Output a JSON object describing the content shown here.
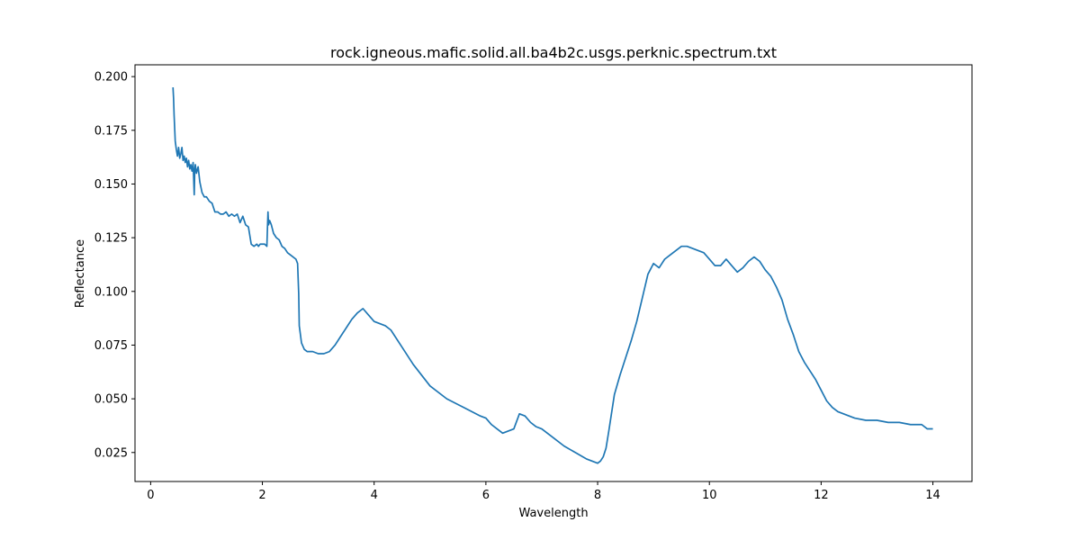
{
  "chart_data": {
    "type": "line",
    "title": "rock.igneous.mafic.solid.all.ba4b2c.usgs.perknic.spectrum.txt",
    "xlabel": "Wavelength",
    "ylabel": "Reflectance",
    "xlim": [
      -0.28,
      14.7
    ],
    "ylim": [
      0.0115,
      0.2055
    ],
    "xticks": [
      0,
      2,
      4,
      6,
      8,
      10,
      12,
      14
    ],
    "xtick_labels": [
      "0",
      "2",
      "4",
      "6",
      "8",
      "10",
      "12",
      "14"
    ],
    "yticks": [
      0.025,
      0.05,
      0.075,
      0.1,
      0.125,
      0.15,
      0.175,
      0.2
    ],
    "ytick_labels": [
      "0.025",
      "0.050",
      "0.075",
      "0.100",
      "0.125",
      "0.150",
      "0.175",
      "0.200"
    ],
    "grid": false,
    "series": [
      {
        "color": "#1f77b4",
        "x": [
          0.4,
          0.41,
          0.42,
          0.44,
          0.46,
          0.48,
          0.5,
          0.52,
          0.54,
          0.56,
          0.58,
          0.6,
          0.62,
          0.64,
          0.66,
          0.68,
          0.7,
          0.72,
          0.74,
          0.76,
          0.78,
          0.79,
          0.8,
          0.82,
          0.85,
          0.88,
          0.92,
          0.96,
          1.0,
          1.05,
          1.1,
          1.15,
          1.2,
          1.25,
          1.3,
          1.35,
          1.4,
          1.45,
          1.5,
          1.55,
          1.6,
          1.65,
          1.7,
          1.75,
          1.8,
          1.85,
          1.9,
          1.93,
          1.96,
          2.0,
          2.04,
          2.08,
          2.1,
          2.11,
          2.13,
          2.16,
          2.2,
          2.25,
          2.3,
          2.35,
          2.4,
          2.45,
          2.5,
          2.55,
          2.6,
          2.63,
          2.65,
          2.66,
          2.68,
          2.7,
          2.75,
          2.8,
          2.9,
          3.0,
          3.1,
          3.2,
          3.3,
          3.4,
          3.5,
          3.6,
          3.7,
          3.8,
          3.9,
          4.0,
          4.1,
          4.2,
          4.3,
          4.5,
          4.7,
          5.0,
          5.3,
          5.6,
          5.9,
          6.0,
          6.1,
          6.2,
          6.3,
          6.4,
          6.5,
          6.6,
          6.7,
          6.8,
          6.9,
          7.0,
          7.1,
          7.2,
          7.4,
          7.6,
          7.8,
          7.9,
          8.0,
          8.05,
          8.1,
          8.15,
          8.2,
          8.3,
          8.4,
          8.5,
          8.6,
          8.7,
          8.8,
          8.9,
          9.0,
          9.1,
          9.2,
          9.3,
          9.4,
          9.5,
          9.6,
          9.7,
          9.8,
          9.9,
          10.0,
          10.1,
          10.2,
          10.3,
          10.4,
          10.5,
          10.6,
          10.7,
          10.8,
          10.9,
          11.0,
          11.1,
          11.2,
          11.3,
          11.4,
          11.5,
          11.6,
          11.7,
          11.8,
          11.9,
          12.0,
          12.1,
          12.2,
          12.3,
          12.4,
          12.5,
          12.6,
          12.8,
          13.0,
          13.2,
          13.4,
          13.6,
          13.8,
          13.9,
          14.0
        ],
        "y": [
          0.195,
          0.19,
          0.182,
          0.17,
          0.166,
          0.163,
          0.167,
          0.162,
          0.164,
          0.167,
          0.161,
          0.163,
          0.16,
          0.162,
          0.158,
          0.161,
          0.157,
          0.159,
          0.156,
          0.16,
          0.145,
          0.157,
          0.159,
          0.155,
          0.158,
          0.151,
          0.146,
          0.144,
          0.144,
          0.142,
          0.141,
          0.137,
          0.137,
          0.136,
          0.136,
          0.137,
          0.135,
          0.136,
          0.135,
          0.136,
          0.132,
          0.135,
          0.131,
          0.13,
          0.122,
          0.121,
          0.122,
          0.121,
          0.122,
          0.122,
          0.122,
          0.121,
          0.137,
          0.131,
          0.133,
          0.131,
          0.127,
          0.125,
          0.124,
          0.121,
          0.12,
          0.118,
          0.117,
          0.116,
          0.115,
          0.113,
          0.099,
          0.084,
          0.08,
          0.076,
          0.073,
          0.072,
          0.072,
          0.071,
          0.071,
          0.072,
          0.075,
          0.079,
          0.083,
          0.087,
          0.09,
          0.092,
          0.089,
          0.086,
          0.085,
          0.084,
          0.082,
          0.074,
          0.066,
          0.056,
          0.05,
          0.046,
          0.042,
          0.041,
          0.038,
          0.036,
          0.034,
          0.035,
          0.036,
          0.043,
          0.042,
          0.039,
          0.037,
          0.036,
          0.034,
          0.032,
          0.028,
          0.025,
          0.022,
          0.021,
          0.02,
          0.021,
          0.023,
          0.027,
          0.035,
          0.052,
          0.061,
          0.069,
          0.077,
          0.086,
          0.097,
          0.108,
          0.113,
          0.111,
          0.115,
          0.117,
          0.119,
          0.121,
          0.121,
          0.12,
          0.119,
          0.118,
          0.115,
          0.112,
          0.112,
          0.115,
          0.112,
          0.109,
          0.111,
          0.114,
          0.116,
          0.114,
          0.11,
          0.107,
          0.102,
          0.096,
          0.087,
          0.08,
          0.072,
          0.067,
          0.063,
          0.059,
          0.054,
          0.049,
          0.046,
          0.044,
          0.043,
          0.042,
          0.041,
          0.04,
          0.04,
          0.039,
          0.039,
          0.038,
          0.038,
          0.036,
          0.036
        ]
      }
    ]
  }
}
